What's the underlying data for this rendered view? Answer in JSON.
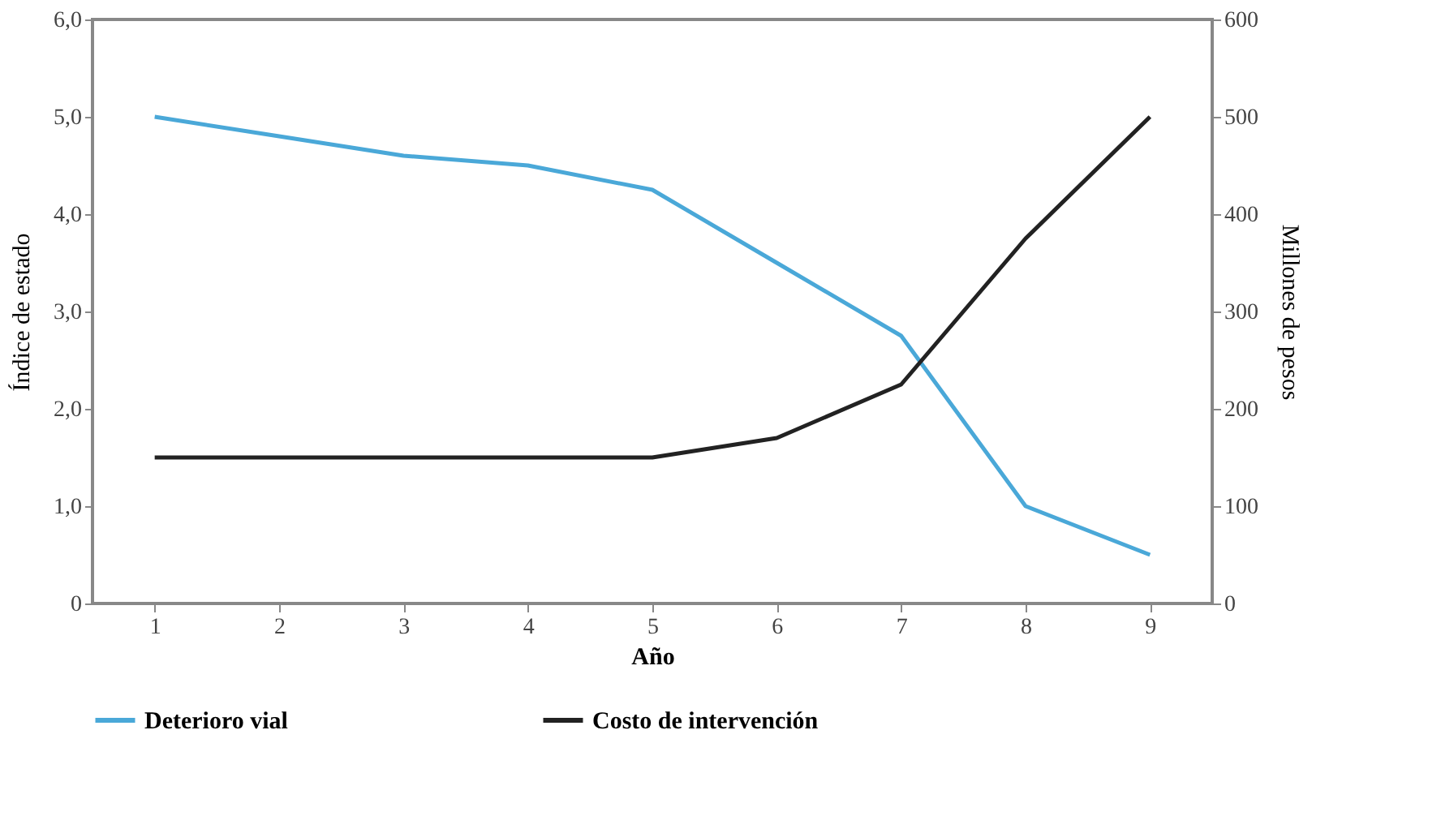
{
  "chart_data": {
    "type": "line",
    "xlabel": "Año",
    "ylabel": "Índice de estado",
    "y2label": "Millones de pesos",
    "categories": [
      "1",
      "2",
      "3",
      "4",
      "5",
      "6",
      "7",
      "8",
      "9"
    ],
    "series": [
      {
        "name": "Deterioro vial",
        "color": "#4aa8d8",
        "values": [
          5.0,
          4.8,
          4.6,
          4.5,
          4.25,
          3.5,
          2.75,
          1.0,
          0.5
        ]
      },
      {
        "name": "Costo de intervención",
        "color": "#222222",
        "axis": "y2",
        "values": [
          150,
          150,
          150,
          150,
          150,
          170,
          225,
          375,
          500
        ]
      }
    ],
    "ylim": [
      0,
      6
    ],
    "yticks": [
      0,
      {
        "value": 1,
        "label": "1,0"
      },
      {
        "value": 2,
        "label": "2,0"
      },
      {
        "value": 3,
        "label": "3,0"
      },
      {
        "value": 4,
        "label": "4,0"
      },
      {
        "value": 5,
        "label": "5,0"
      },
      {
        "value": 6,
        "label": "6,0"
      }
    ],
    "y2lim": [
      0,
      600
    ],
    "y2ticks": [
      0,
      100,
      200,
      300,
      400,
      500,
      600
    ],
    "grid": false,
    "legend": "bottom",
    "marker": "none",
    "line_style": "solid"
  }
}
